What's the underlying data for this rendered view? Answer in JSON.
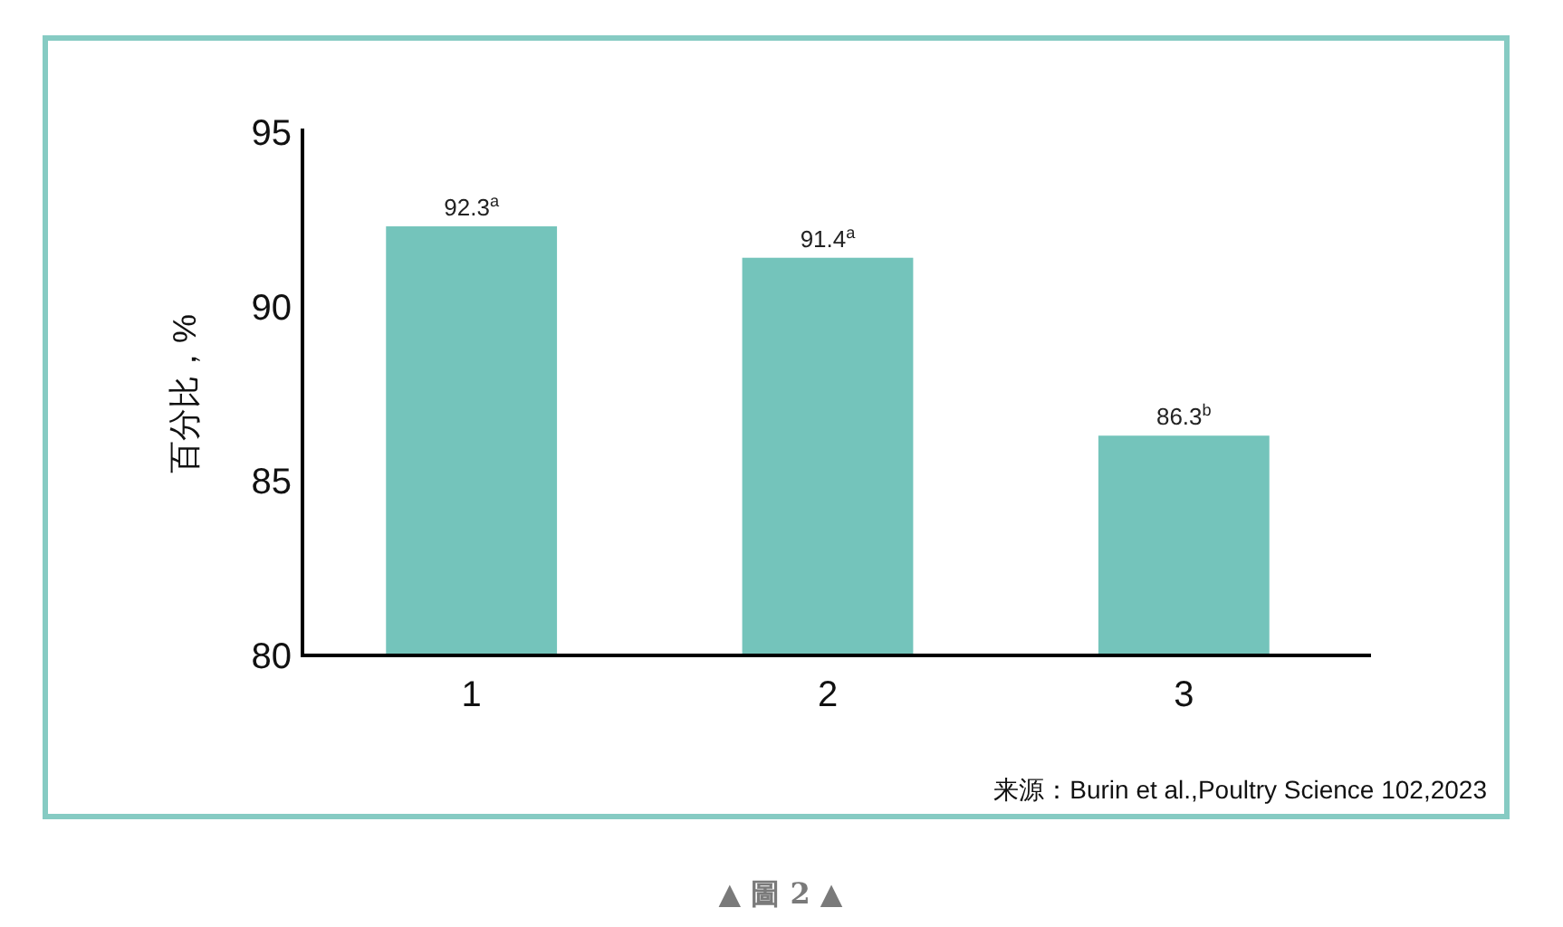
{
  "chart_data": {
    "type": "bar",
    "ylabel": "百分比，%",
    "categories": [
      "1",
      "2",
      "3"
    ],
    "values": [
      92.3,
      91.4,
      86.3
    ],
    "value_labels": [
      "92.3$^{a}$",
      "91.4$^{a}$",
      "86.3$^{b}$"
    ],
    "color": "#74c4bb",
    "ylim": [
      80,
      95
    ],
    "yticks": [
      80,
      85,
      90,
      95
    ],
    "annotations": [
      "来源：Burin et al.,Poultry Science 102,2023",
      "▲ 圖 2 ▲"
    ]
  }
}
